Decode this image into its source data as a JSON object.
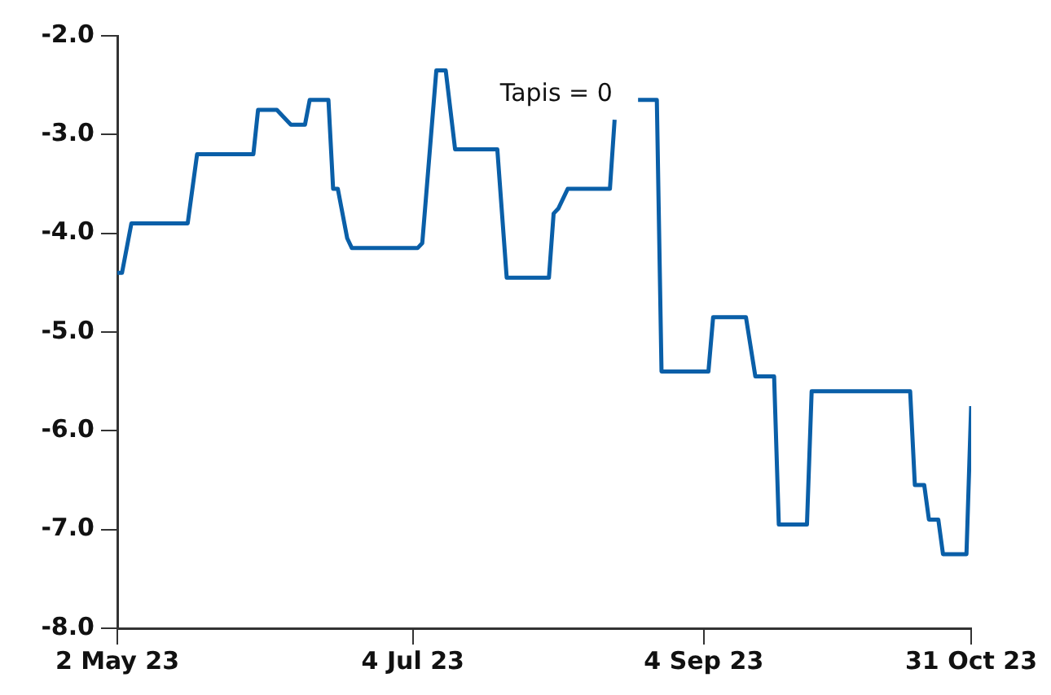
{
  "chart_data": {
    "type": "line",
    "x": [
      "2023-05-02",
      "2023-05-03",
      "2023-05-05",
      "2023-05-17",
      "2023-05-19",
      "2023-05-31",
      "2023-06-01",
      "2023-06-05",
      "2023-06-08",
      "2023-06-11",
      "2023-06-12",
      "2023-06-16",
      "2023-06-17",
      "2023-06-18",
      "2023-06-20",
      "2023-06-21",
      "2023-07-05",
      "2023-07-06",
      "2023-07-09",
      "2023-07-11",
      "2023-07-13",
      "2023-07-22",
      "2023-07-24",
      "2023-08-02",
      "2023-08-03",
      "2023-08-04",
      "2023-08-06",
      "2023-08-15",
      "2023-08-16",
      "2023-08-18",
      "2023-08-21",
      "2023-08-25",
      "2023-08-26",
      "2023-09-05",
      "2023-09-06",
      "2023-09-13",
      "2023-09-15",
      "2023-09-19",
      "2023-09-20",
      "2023-09-26",
      "2023-09-27",
      "2023-10-18",
      "2023-10-19",
      "2023-10-21",
      "2023-10-22",
      "2023-10-24",
      "2023-10-25",
      "2023-10-30",
      "2023-10-31"
    ],
    "series": [
      {
        "color": "#0a5fa8",
        "values": [
          -4.4,
          -4.4,
          -3.9,
          -3.9,
          -3.2,
          -3.2,
          -2.75,
          -2.75,
          -2.9,
          -2.9,
          -2.65,
          -2.65,
          -3.55,
          -3.55,
          -4.05,
          -4.15,
          -4.15,
          -4.1,
          -2.35,
          -2.35,
          -3.15,
          -3.15,
          -4.45,
          -4.45,
          -3.8,
          -3.75,
          -3.55,
          -3.55,
          -2.85,
          null,
          -2.65,
          -2.65,
          -5.4,
          -5.4,
          -4.85,
          -4.85,
          -5.45,
          -5.45,
          -6.95,
          -6.95,
          -5.6,
          -5.6,
          -6.55,
          -6.55,
          -6.9,
          -6.9,
          -7.25,
          -7.25,
          -5.75
        ]
      }
    ],
    "xlim": [
      "2023-05-02",
      "2023-10-31"
    ],
    "xticks": [
      {
        "value": "2023-05-02",
        "label": "2 May 23"
      },
      {
        "value": "2023-07-04",
        "label": "4 Jul 23"
      },
      {
        "value": "2023-09-04",
        "label": "4 Sep 23"
      },
      {
        "value": "2023-10-31",
        "label": "31 Oct 23"
      }
    ],
    "ylim": [
      -8,
      -2
    ],
    "yticks": [
      {
        "value": -2,
        "label": "-2.0"
      },
      {
        "value": -3,
        "label": "-3.0"
      },
      {
        "value": -4,
        "label": "-4.0"
      },
      {
        "value": -5,
        "label": "-5.0"
      },
      {
        "value": -6,
        "label": "-6.0"
      },
      {
        "value": -7,
        "label": "-7.0"
      },
      {
        "value": -8,
        "label": "-8.0"
      }
    ],
    "annotations": [
      "Tapis = 0"
    ],
    "grid": false,
    "legend": false,
    "marker": "none",
    "line_style": "solid"
  }
}
